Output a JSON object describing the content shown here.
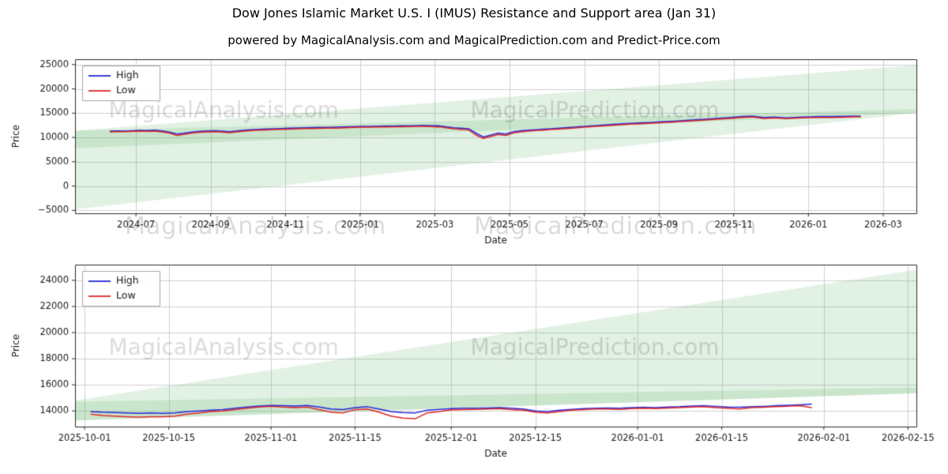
{
  "page": {
    "title": "Dow Jones Islamic Market U.S. I (IMUS) Resistance and Support area (Jan 31)",
    "subtitle": "powered by MagicalAnalysis.com and MagicalPrediction.com and Predict-Price.com"
  },
  "watermarks": {
    "mid_left": "MagicalAnalysis.com",
    "mid_right": "MagicalPrediction.com"
  },
  "colors": {
    "high": "#2626d8",
    "low": "#e02828",
    "band": "rgba(105,185,115,0.20)",
    "grid": "#cfcfcf",
    "spine": "#2b2b2b",
    "text": "#1a1a1a",
    "watermark": "rgba(0,0,0,0.14)",
    "legend_border": "#a6a6a6"
  },
  "chart_data": [
    {
      "type": "line",
      "title": "",
      "xlabel": "Date",
      "ylabel": "Price",
      "x_unit": "months since 2024-06-01",
      "xlim": [
        -0.63,
        21.89
      ],
      "ylim": [
        -5600,
        26100
      ],
      "grid": true,
      "legend": {
        "position": "upper-left",
        "entries": [
          "High",
          "Low"
        ]
      },
      "xticks": [
        {
          "v": 1,
          "label": "2024-07"
        },
        {
          "v": 3,
          "label": "2024-09"
        },
        {
          "v": 5,
          "label": "2024-11"
        },
        {
          "v": 7,
          "label": "2025-01"
        },
        {
          "v": 9,
          "label": "2025-03"
        },
        {
          "v": 11,
          "label": "2025-05"
        },
        {
          "v": 13,
          "label": "2025-07"
        },
        {
          "v": 15,
          "label": "2025-09"
        },
        {
          "v": 17,
          "label": "2025-11"
        },
        {
          "v": 19,
          "label": "2026-01"
        },
        {
          "v": 21,
          "label": "2026-03"
        }
      ],
      "yticks": [
        {
          "v": -5000,
          "label": "−5000"
        },
        {
          "v": 0,
          "label": "0"
        },
        {
          "v": 5000,
          "label": "5000"
        },
        {
          "v": 10000,
          "label": "10000"
        },
        {
          "v": 15000,
          "label": "15000"
        },
        {
          "v": 20000,
          "label": "20000"
        },
        {
          "v": 25000,
          "label": "25000"
        }
      ],
      "watermarks": [
        {
          "text": "MagicalAnalysis.com",
          "fx": 0.04,
          "fy": 0.34
        },
        {
          "text": "MagicalPrediction.com",
          "fx": 0.47,
          "fy": 0.34
        }
      ],
      "bands": [
        {
          "x": [
            -0.63,
            21.89
          ],
          "lower": [
            -4800,
            15100
          ],
          "upper": [
            11400,
            15800
          ]
        },
        {
          "x": [
            -0.63,
            21.89
          ],
          "lower": [
            7800,
            15100
          ],
          "upper": [
            11400,
            24900
          ]
        }
      ],
      "x": [
        0.3,
        0.5,
        0.7,
        0.9,
        1.1,
        1.3,
        1.5,
        1.7,
        1.9,
        2.1,
        2.3,
        2.5,
        2.7,
        2.9,
        3.1,
        3.3,
        3.5,
        3.7,
        3.9,
        4.1,
        4.3,
        4.5,
        4.7,
        4.9,
        5.1,
        5.3,
        5.5,
        5.7,
        5.9,
        6.1,
        6.3,
        6.5,
        6.7,
        6.9,
        7.1,
        7.3,
        7.5,
        7.7,
        7.9,
        8.1,
        8.3,
        8.5,
        8.7,
        8.9,
        9.1,
        9.3,
        9.5,
        9.7,
        9.9,
        10.1,
        10.3,
        10.5,
        10.7,
        10.9,
        11.1,
        11.3,
        11.5,
        11.7,
        11.9,
        12.1,
        12.4,
        12.7,
        13.0,
        13.3,
        13.6,
        13.9,
        14.2,
        14.5,
        14.8,
        15.1,
        15.4,
        15.7,
        16.0,
        16.3,
        16.6,
        16.9,
        17.2,
        17.5,
        17.8,
        18.1,
        18.4,
        18.7,
        19.0,
        19.3,
        19.6,
        19.9,
        20.2,
        20.4
      ],
      "series": [
        {
          "name": "High",
          "color_key": "high",
          "values": [
            11300,
            11350,
            11320,
            11400,
            11450,
            11420,
            11500,
            11350,
            11100,
            10700,
            10900,
            11100,
            11250,
            11350,
            11400,
            11300,
            11200,
            11350,
            11500,
            11600,
            11680,
            11750,
            11800,
            11850,
            11900,
            11950,
            12000,
            12030,
            12060,
            12080,
            12100,
            12150,
            12200,
            12250,
            12280,
            12300,
            12330,
            12350,
            12380,
            12400,
            12420,
            12450,
            12480,
            12450,
            12400,
            12200,
            12000,
            11900,
            11800,
            10900,
            10100,
            10500,
            10900,
            10700,
            11200,
            11400,
            11500,
            11600,
            11700,
            11800,
            11950,
            12100,
            12300,
            12450,
            12600,
            12750,
            12900,
            13000,
            13100,
            13250,
            13350,
            13500,
            13650,
            13800,
            13950,
            14100,
            14300,
            14400,
            14100,
            14200,
            14050,
            14150,
            14250,
            14300,
            14300,
            14350,
            14400,
            14400
          ]
        },
        {
          "name": "Low",
          "color_key": "low",
          "values": [
            11150,
            11200,
            11170,
            11250,
            11300,
            11270,
            11320,
            11150,
            10900,
            10400,
            10650,
            10900,
            11050,
            11150,
            11200,
            11100,
            11000,
            11150,
            11300,
            11420,
            11500,
            11570,
            11620,
            11670,
            11720,
            11770,
            11820,
            11850,
            11880,
            11900,
            11920,
            11970,
            12020,
            12070,
            12100,
            12120,
            12150,
            12170,
            12200,
            12220,
            12240,
            12270,
            12300,
            12250,
            12180,
            11980,
            11780,
            11680,
            11550,
            10500,
            9800,
            10200,
            10600,
            10400,
            10950,
            11150,
            11300,
            11420,
            11520,
            11620,
            11770,
            11920,
            12120,
            12270,
            12420,
            12570,
            12720,
            12820,
            12920,
            13070,
            13170,
            13320,
            13470,
            13620,
            13770,
            13920,
            14120,
            14220,
            13920,
            14020,
            13870,
            13970,
            14070,
            14120,
            14120,
            14170,
            14220,
            14250
          ]
        }
      ]
    },
    {
      "type": "line",
      "title": "",
      "xlabel": "Date",
      "ylabel": "Price",
      "x_unit": "days since 2025-10-01",
      "xlim": [
        -1.6,
        138.4
      ],
      "ylim": [
        12800,
        25200
      ],
      "grid": true,
      "legend": {
        "position": "upper-left",
        "entries": [
          "High",
          "Low"
        ]
      },
      "xticks": [
        {
          "v": 0,
          "label": "2025-10-01"
        },
        {
          "v": 14,
          "label": "2025-10-15"
        },
        {
          "v": 31,
          "label": "2025-11-01"
        },
        {
          "v": 45,
          "label": "2025-11-15"
        },
        {
          "v": 61,
          "label": "2025-12-01"
        },
        {
          "v": 75,
          "label": "2025-12-15"
        },
        {
          "v": 92,
          "label": "2026-01-01"
        },
        {
          "v": 106,
          "label": "2026-01-15"
        },
        {
          "v": 123,
          "label": "2026-02-01"
        },
        {
          "v": 137,
          "label": "2026-02-15"
        }
      ],
      "yticks": [
        {
          "v": 14000,
          "label": "14000"
        },
        {
          "v": 16000,
          "label": "16000"
        },
        {
          "v": 18000,
          "label": "18000"
        },
        {
          "v": 20000,
          "label": "20000"
        },
        {
          "v": 22000,
          "label": "22000"
        },
        {
          "v": 24000,
          "label": "24000"
        }
      ],
      "watermarks": [
        {
          "text": "MagicalAnalysis.com",
          "fx": 0.04,
          "fy": 0.52
        },
        {
          "text": "MagicalPrediction.com",
          "fx": 0.47,
          "fy": 0.52
        }
      ],
      "bands": [
        {
          "x": [
            -1.6,
            138.4
          ],
          "lower": [
            13250,
            15350
          ],
          "upper": [
            14700,
            15800
          ]
        },
        {
          "x": [
            -1.6,
            138.4
          ],
          "lower": [
            13300,
            15350
          ],
          "upper": [
            14800,
            24800
          ]
        }
      ],
      "x": [
        1,
        3,
        5,
        7,
        9,
        11,
        13,
        15,
        17,
        19,
        21,
        23,
        25,
        27,
        29,
        31,
        33,
        35,
        37,
        39,
        41,
        43,
        45,
        47,
        49,
        51,
        53,
        55,
        57,
        59,
        61,
        63,
        65,
        67,
        69,
        71,
        73,
        75,
        77,
        79,
        81,
        83,
        85,
        87,
        89,
        91,
        93,
        95,
        97,
        99,
        101,
        103,
        105,
        107,
        109,
        111,
        113,
        115,
        117,
        119,
        121
      ],
      "series": [
        {
          "name": "High",
          "color_key": "high",
          "values": [
            13950,
            13900,
            13880,
            13850,
            13820,
            13850,
            13820,
            13850,
            13950,
            14000,
            14050,
            14100,
            14200,
            14300,
            14380,
            14420,
            14400,
            14380,
            14420,
            14300,
            14150,
            14100,
            14250,
            14320,
            14150,
            13950,
            13880,
            13850,
            14050,
            14120,
            14180,
            14200,
            14200,
            14220,
            14250,
            14200,
            14150,
            14000,
            13950,
            14050,
            14120,
            14180,
            14200,
            14220,
            14200,
            14250,
            14280,
            14250,
            14300,
            14320,
            14380,
            14400,
            14350,
            14300,
            14280,
            14320,
            14350,
            14400,
            14430,
            14470,
            14520
          ]
        },
        {
          "name": "Low",
          "color_key": "low",
          "values": [
            13750,
            13650,
            13600,
            13550,
            13520,
            13550,
            13560,
            13600,
            13750,
            13850,
            13950,
            14000,
            14100,
            14200,
            14300,
            14350,
            14300,
            14250,
            14300,
            14100,
            13900,
            13850,
            14100,
            14150,
            13900,
            13600,
            13450,
            13400,
            13850,
            13950,
            14080,
            14100,
            14120,
            14150,
            14180,
            14100,
            14050,
            13900,
            13850,
            13950,
            14050,
            14100,
            14150,
            14150,
            14120,
            14180,
            14200,
            14180,
            14220,
            14250,
            14300,
            14320,
            14250,
            14200,
            14150,
            14250,
            14280,
            14320,
            14350,
            14400,
            14250
          ]
        }
      ]
    }
  ]
}
